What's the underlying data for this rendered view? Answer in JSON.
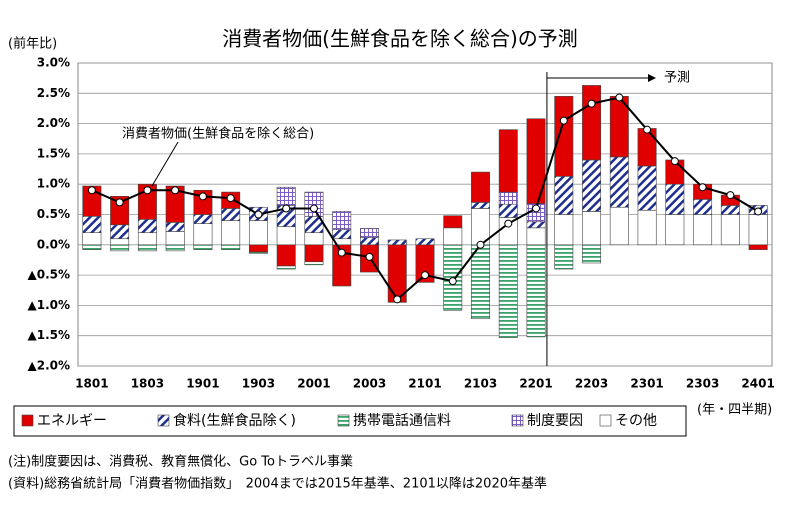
{
  "chart_data": {
    "type": "bar",
    "stacked": true,
    "title": "消費者物価(生鮮食品を除く総合)の予測",
    "y_label": "(前年比)",
    "x_label": "(年・四半期)",
    "annotations": [
      "予測",
      "消費者物価(生鮮食品を除く総合)"
    ],
    "notes": [
      "(注)制度要因は、消費税、教育無償化、Go Toトラベル事業",
      "(資料)総務省統計局「消費者物価指数」　2004までは2015年基準、2101以降は2020年基準"
    ],
    "categories": [
      "1801",
      null,
      "1803",
      null,
      "1901",
      null,
      "1903",
      null,
      "2001",
      null,
      "2003",
      null,
      "2101",
      null,
      "2103",
      null,
      "2201",
      null,
      "2203",
      null,
      "2301",
      null,
      "2303",
      null,
      "2401"
    ],
    "ylim": [
      -2.0,
      3.0
    ],
    "yticks": [
      {
        "value": 3.0,
        "label": "3.0%"
      },
      {
        "value": 2.5,
        "label": "2.5%"
      },
      {
        "value": 2.0,
        "label": "2.0%"
      },
      {
        "value": 1.5,
        "label": "1.5%"
      },
      {
        "value": 1.0,
        "label": "1.0%"
      },
      {
        "value": 0.5,
        "label": "0.5%"
      },
      {
        "value": 0.0,
        "label": "0.0%"
      },
      {
        "value": -0.5,
        "label": "▲0.5%"
      },
      {
        "value": -1.0,
        "label": "▲1.0%"
      },
      {
        "value": -1.5,
        "label": "▲1.5%"
      },
      {
        "value": -2.0,
        "label": "▲2.0%"
      }
    ],
    "grid": true,
    "series": [
      {
        "name": "エネルギー",
        "color": "#e00000",
        "hatch": null,
        "values": [
          0.5,
          0.47,
          0.58,
          0.6,
          0.4,
          0.27,
          -0.12,
          -0.35,
          -0.28,
          -0.68,
          -0.45,
          -0.95,
          -0.62,
          0.2,
          0.5,
          1.03,
          1.4,
          1.32,
          1.23,
          1.0,
          0.62,
          0.4,
          0.25,
          0.17,
          -0.08
        ]
      },
      {
        "name": "食料(生鮮食品除く)",
        "color": "#1f2f8f",
        "hatch": "diagonal",
        "values": [
          0.27,
          0.23,
          0.22,
          0.15,
          0.15,
          0.2,
          0.22,
          0.35,
          0.27,
          0.15,
          0.12,
          0.08,
          0.1,
          0.0,
          0.1,
          0.22,
          0.1,
          0.63,
          0.85,
          0.83,
          0.73,
          0.5,
          0.25,
          0.15,
          0.15
        ]
      },
      {
        "name": "携帯電話通信料",
        "color": "#3aa36a",
        "hatch": "horizontal",
        "values": [
          -0.08,
          -0.1,
          -0.1,
          -0.1,
          -0.08,
          -0.08,
          -0.02,
          -0.05,
          -0.05,
          0.0,
          0.0,
          0.0,
          0.0,
          -1.08,
          -1.22,
          -1.53,
          -1.52,
          -0.4,
          -0.3,
          0.0,
          0.0,
          0.0,
          0.0,
          0.0,
          0.0
        ]
      },
      {
        "name": "制度要因",
        "color": "#7a5cc7",
        "hatch": "grid",
        "values": [
          0.0,
          0.0,
          0.0,
          0.0,
          0.0,
          0.0,
          0.0,
          0.3,
          0.4,
          0.3,
          0.15,
          0.0,
          0.0,
          0.0,
          0.0,
          0.2,
          0.3,
          0.0,
          0.0,
          0.0,
          0.0,
          0.0,
          0.0,
          0.0,
          0.0
        ]
      },
      {
        "name": "その他",
        "color": "#ffffff",
        "hatch": null,
        "values": [
          0.2,
          0.1,
          0.2,
          0.22,
          0.35,
          0.4,
          0.4,
          0.3,
          0.2,
          0.1,
          0.0,
          0.0,
          0.0,
          0.28,
          0.6,
          0.45,
          0.28,
          0.5,
          0.55,
          0.62,
          0.57,
          0.5,
          0.5,
          0.5,
          0.5
        ]
      }
    ],
    "line": {
      "name": "消費者物価(生鮮食品を除く総合)",
      "color": "#000000",
      "values": [
        0.9,
        0.7,
        0.9,
        0.9,
        0.8,
        0.77,
        0.5,
        0.6,
        0.6,
        -0.13,
        -0.2,
        -0.9,
        -0.5,
        -0.6,
        0.0,
        0.35,
        0.6,
        2.05,
        2.33,
        2.43,
        1.9,
        1.38,
        0.95,
        0.82,
        0.55
      ]
    },
    "forecast_start": 17
  }
}
